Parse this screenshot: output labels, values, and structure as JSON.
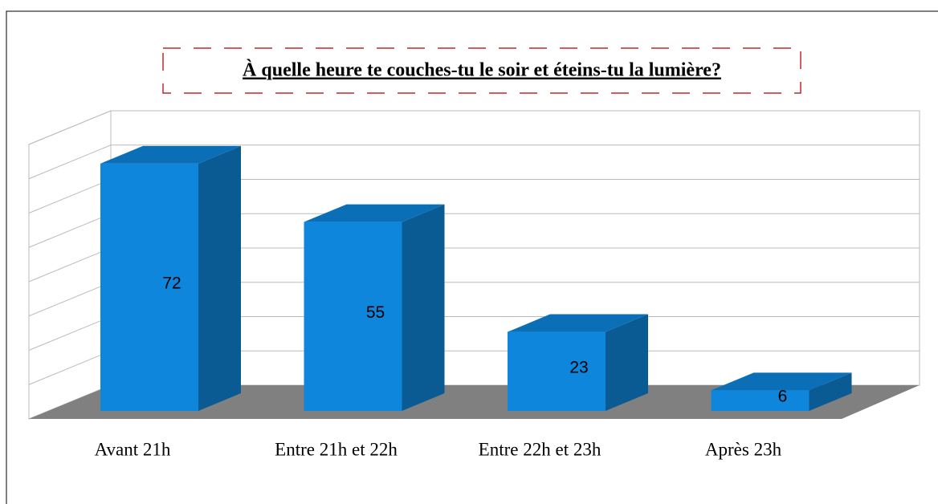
{
  "chart_data": {
    "type": "bar3d",
    "title": "À quelle heure te couches-tu le soir et éteins-tu la lumière?",
    "categories": [
      "Avant 21h",
      "Entre 21h et 22h",
      "Entre 22h et 23h",
      "Après 23h"
    ],
    "values": [
      72,
      55,
      23,
      6
    ],
    "color": "#0d86dc",
    "ylim": [
      0,
      80
    ],
    "yticks": [
      0,
      10,
      20,
      30,
      40,
      50,
      60,
      70,
      80
    ],
    "grid": true
  }
}
